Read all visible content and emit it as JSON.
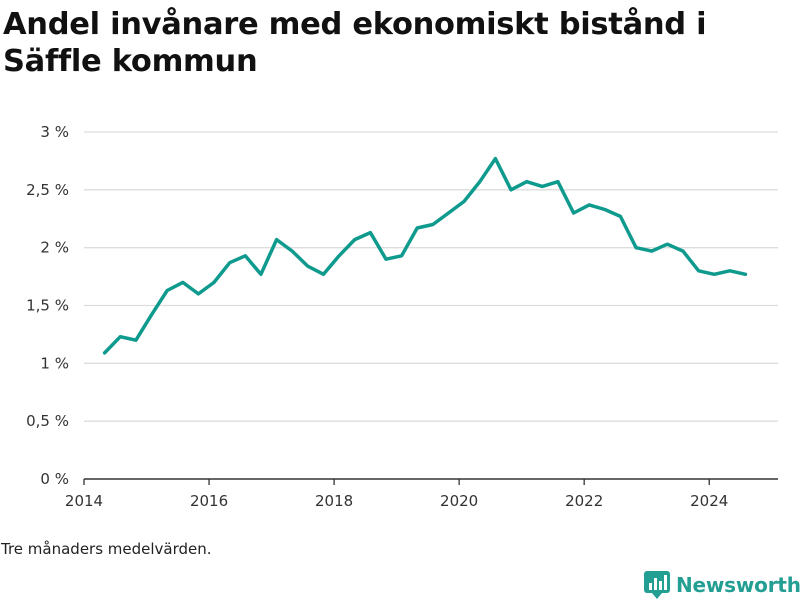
{
  "colors": {
    "line": "#0f9a8e",
    "grid": "#dddddd",
    "axis": "#333333",
    "brand": "#239e93"
  },
  "footer": {
    "note": "Tre månaders medelvärden.",
    "brand": "Newsworthy",
    "brand_icon": "bar-chart-icon"
  },
  "chart_data": {
    "type": "line",
    "title": "Andel invånare med ekonomiskt bistånd i Säffle kommun",
    "xlabel": "",
    "ylabel": "",
    "grid": true,
    "xlim": [
      2014.0,
      2025.1
    ],
    "ylim": [
      0,
      3
    ],
    "x_ticks": [
      2014,
      2016,
      2018,
      2020,
      2022,
      2024
    ],
    "x_tick_labels": [
      "2014",
      "2016",
      "2018",
      "2020",
      "2022",
      "2024"
    ],
    "y_ticks": [
      0,
      0.5,
      1,
      1.5,
      2,
      2.5,
      3
    ],
    "y_tick_labels": [
      "0 %",
      "0,5 %",
      "1 %",
      "1,5 %",
      "2 %",
      "2,5 %",
      "3 %"
    ],
    "series": [
      {
        "x": [
          2014.33,
          2014.58,
          2014.83,
          2015.08,
          2015.33,
          2015.58,
          2015.83,
          2016.08,
          2016.33,
          2016.58,
          2016.83,
          2017.08,
          2017.33,
          2017.58,
          2017.83,
          2018.08,
          2018.33,
          2018.58,
          2018.83,
          2019.08,
          2019.33,
          2019.58,
          2019.83,
          2020.08,
          2020.33,
          2020.58,
          2020.83,
          2021.08,
          2021.33,
          2021.58,
          2021.83,
          2022.08,
          2022.33,
          2022.58,
          2022.83,
          2023.08,
          2023.33,
          2023.58,
          2023.83,
          2024.08,
          2024.33,
          2024.58
        ],
        "values": [
          1.09,
          1.23,
          1.2,
          1.42,
          1.63,
          1.7,
          1.6,
          1.7,
          1.87,
          1.93,
          1.77,
          2.07,
          1.97,
          1.84,
          1.77,
          1.93,
          2.07,
          2.13,
          1.9,
          1.93,
          2.17,
          2.2,
          2.3,
          2.4,
          2.57,
          2.77,
          2.5,
          2.57,
          2.53,
          2.57,
          2.3,
          2.37,
          2.33,
          2.27,
          2.0,
          1.97,
          2.03,
          1.97,
          1.8,
          1.77,
          1.8,
          1.77
        ]
      }
    ]
  }
}
